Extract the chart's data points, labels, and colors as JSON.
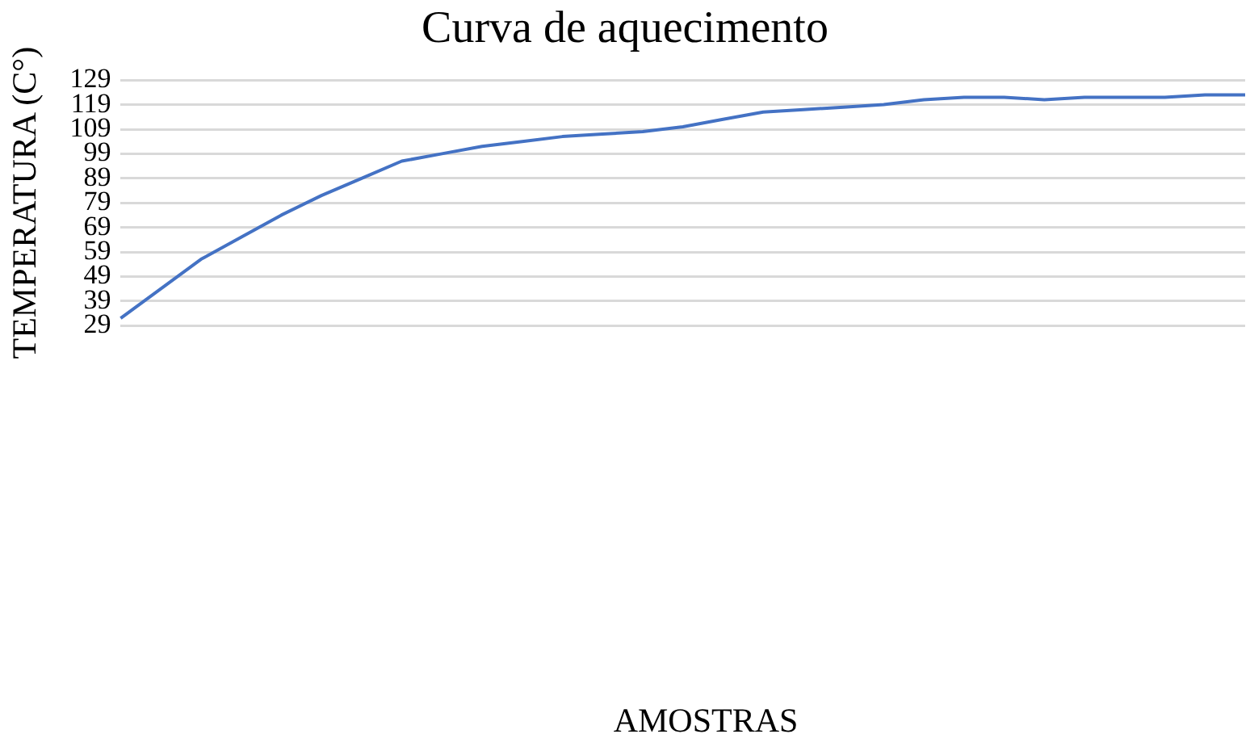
{
  "chart_data": {
    "type": "line",
    "title": "Curva de aquecimento",
    "annotations": [
      "AMOSTRAS"
    ],
    "ylabel": "TEMPERATURA (C°)",
    "categories": [
      null,
      null,
      null,
      null,
      null,
      null,
      null,
      null,
      null,
      null,
      null,
      null,
      null,
      null,
      null,
      null,
      null,
      null,
      null,
      null,
      null,
      null,
      null,
      null,
      null,
      null,
      null,
      null,
      null
    ],
    "series": [
      {
        "color": "#4472c4",
        "values": [
          32,
          44,
          56,
          65,
          74,
          82,
          89,
          96,
          99,
          102,
          104,
          106,
          107,
          108,
          110,
          113,
          116,
          117,
          118,
          119,
          121,
          122,
          122,
          121,
          122,
          122,
          122,
          123,
          123
        ]
      }
    ],
    "ylim": [
      29,
      129
    ],
    "yticks": [
      29,
      39,
      49,
      59,
      69,
      79,
      89,
      99,
      109,
      119,
      129
    ],
    "grid": "y",
    "legend": false,
    "marker": "none",
    "line_style": "solid"
  }
}
